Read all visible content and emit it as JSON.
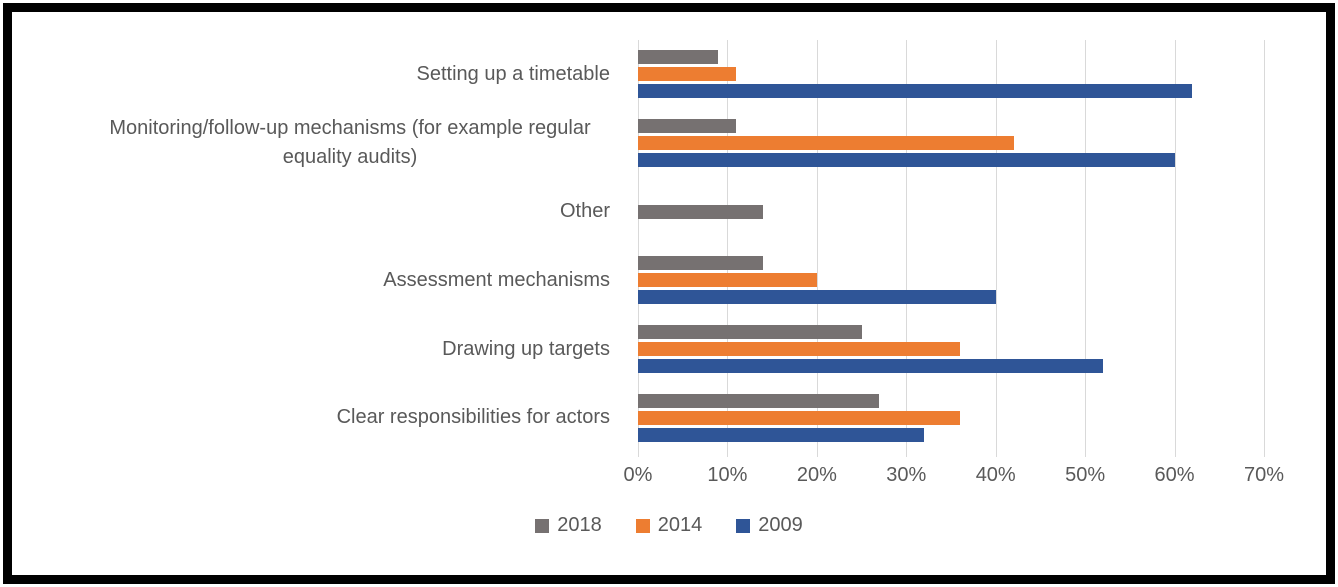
{
  "chart_data": {
    "type": "bar",
    "orientation": "horizontal",
    "title": "",
    "xlabel": "",
    "ylabel": "",
    "xlim": [
      0,
      70
    ],
    "x_tick_step": 10,
    "x_ticks": [
      "0%",
      "10%",
      "20%",
      "30%",
      "40%",
      "50%",
      "60%",
      "70%"
    ],
    "grid": true,
    "legend_position": "bottom",
    "categories": [
      "Setting up a timetable",
      "Monitoring/follow-up mechanisms (for example regular equality audits)",
      "Other",
      "Assessment mechanisms",
      "Drawing up targets",
      "Clear responsibilities for actors"
    ],
    "series": [
      {
        "name": "2018",
        "color": "#767171",
        "values": [
          9,
          11,
          14,
          14,
          25,
          27
        ]
      },
      {
        "name": "2014",
        "color": "#ED7D31",
        "values": [
          11,
          42,
          0,
          20,
          36,
          36
        ]
      },
      {
        "name": "2009",
        "color": "#2F5597",
        "values": [
          62,
          60,
          0,
          40,
          52,
          32
        ]
      }
    ]
  },
  "colors": {
    "gridline": "#d9d9d9",
    "text": "#595959",
    "frame_border": "#000000",
    "background": "#ffffff"
  }
}
